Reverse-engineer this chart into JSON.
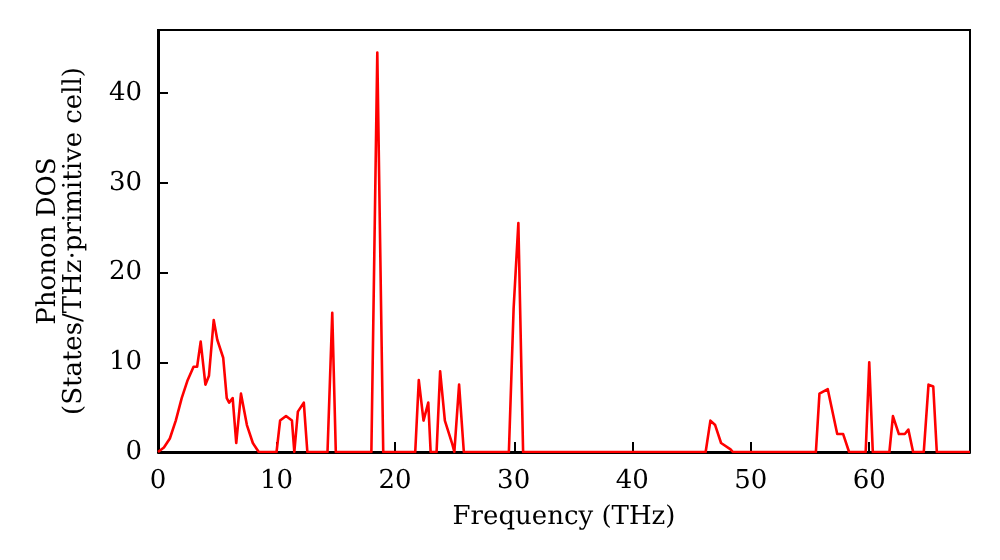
{
  "chart_data": {
    "type": "line",
    "xlabel": "Frequency (THz)",
    "ylabel": "Phonon DOS\n(States/THz·primitive cell)",
    "xlim": [
      0,
      68.5
    ],
    "ylim": [
      0,
      47
    ],
    "xticks": [
      0,
      10,
      20,
      30,
      40,
      50,
      60
    ],
    "yticks": [
      0,
      10,
      20,
      30,
      40
    ],
    "grid": false,
    "marker": "none",
    "line_style": "solid",
    "series": [
      {
        "color": "#ff0000",
        "x": [
          0,
          0.5,
          1,
          1.5,
          2,
          2.5,
          3,
          3.3,
          3.6,
          4,
          4.3,
          4.7,
          5,
          5.5,
          5.8,
          6,
          6.3,
          6.6,
          7,
          7.5,
          8,
          8.5,
          10,
          10.3,
          10.8,
          11.3,
          11.5,
          11.8,
          12.3,
          12.6,
          14.3,
          14.7,
          15,
          18,
          18.5,
          19,
          21.7,
          22,
          22.4,
          22.8,
          23,
          23.5,
          23.8,
          24.2,
          24.8,
          25,
          25.4,
          25.8,
          29.6,
          30,
          30.4,
          30.8,
          46.2,
          46.6,
          47,
          47.5,
          48.3,
          48.5,
          55.5,
          55.8,
          56.5,
          57.3,
          57.8,
          58.3,
          59.7,
          60,
          60.3,
          61.7,
          62,
          62.5,
          63,
          63.3,
          63.7,
          64.6,
          65,
          65.4,
          65.7,
          68.5
        ],
        "values": [
          0,
          0.5,
          1.5,
          3.5,
          6,
          8,
          9.5,
          9.5,
          12.3,
          7.5,
          8.5,
          14.7,
          12.5,
          10.5,
          6,
          5.5,
          6,
          1,
          6.5,
          3,
          1,
          0,
          0,
          3.5,
          4,
          3.5,
          0,
          4.5,
          5.5,
          0,
          0,
          15.5,
          0,
          0,
          44.5,
          0,
          0,
          8,
          3.5,
          5.5,
          0,
          0,
          9,
          3.5,
          1,
          0,
          7.5,
          0,
          0,
          16,
          25.5,
          0,
          0,
          3.5,
          3,
          1,
          0.3,
          0,
          0,
          6.5,
          7,
          2,
          2,
          0,
          0,
          10,
          0,
          0,
          4,
          2,
          2,
          2.5,
          0,
          0,
          7.5,
          7.3,
          0,
          0
        ]
      }
    ]
  }
}
